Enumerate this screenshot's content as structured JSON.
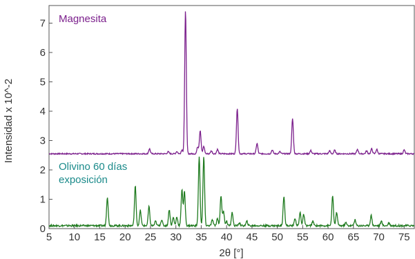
{
  "chart_data": {
    "type": "line",
    "xlabel": "2θ [°]",
    "ylabel": "Intensidad x 10^-2",
    "xlim": [
      5,
      77
    ],
    "ylim": [
      0,
      7.6
    ],
    "xticks": [
      5,
      10,
      15,
      20,
      25,
      30,
      35,
      40,
      45,
      50,
      55,
      60,
      65,
      70,
      75
    ],
    "yticks": [
      0,
      1,
      2,
      3,
      4,
      5,
      6,
      7
    ],
    "grid": false,
    "legend": "none",
    "series": [
      {
        "name": "Magnesita",
        "color": "#7b1f8c",
        "baseline": 2.55,
        "noise": 0.02,
        "peaks": [
          {
            "x": 24.8,
            "y": 2.72
          },
          {
            "x": 28.5,
            "y": 2.62
          },
          {
            "x": 30.2,
            "y": 2.63
          },
          {
            "x": 31.2,
            "y": 2.68
          },
          {
            "x": 31.9,
            "y": 7.45
          },
          {
            "x": 34.3,
            "y": 2.78
          },
          {
            "x": 34.8,
            "y": 3.35
          },
          {
            "x": 35.5,
            "y": 2.8
          },
          {
            "x": 37.0,
            "y": 2.65
          },
          {
            "x": 38.2,
            "y": 2.7
          },
          {
            "x": 42.1,
            "y": 4.1
          },
          {
            "x": 46.0,
            "y": 2.9
          },
          {
            "x": 49.0,
            "y": 2.68
          },
          {
            "x": 50.5,
            "y": 2.62
          },
          {
            "x": 53.0,
            "y": 3.75
          },
          {
            "x": 56.6,
            "y": 2.66
          },
          {
            "x": 60.3,
            "y": 2.65
          },
          {
            "x": 61.3,
            "y": 2.67
          },
          {
            "x": 65.8,
            "y": 2.7
          },
          {
            "x": 67.6,
            "y": 2.65
          },
          {
            "x": 68.6,
            "y": 2.72
          },
          {
            "x": 69.6,
            "y": 2.7
          },
          {
            "x": 75.0,
            "y": 2.68
          }
        ]
      },
      {
        "name": "Olivino 60 días exposición",
        "color": "#1e7a1e",
        "baseline": 0.1,
        "noise": 0.03,
        "peaks": [
          {
            "x": 16.5,
            "y": 1.08
          },
          {
            "x": 22.0,
            "y": 1.45
          },
          {
            "x": 23.0,
            "y": 0.62
          },
          {
            "x": 24.7,
            "y": 0.75
          },
          {
            "x": 26.0,
            "y": 0.25
          },
          {
            "x": 27.2,
            "y": 0.3
          },
          {
            "x": 28.7,
            "y": 0.65
          },
          {
            "x": 29.5,
            "y": 0.38
          },
          {
            "x": 30.2,
            "y": 0.4
          },
          {
            "x": 31.2,
            "y": 1.35
          },
          {
            "x": 31.7,
            "y": 1.25
          },
          {
            "x": 34.6,
            "y": 2.45
          },
          {
            "x": 35.5,
            "y": 2.45
          },
          {
            "x": 37.2,
            "y": 0.3
          },
          {
            "x": 38.2,
            "y": 0.35
          },
          {
            "x": 38.9,
            "y": 1.12
          },
          {
            "x": 39.4,
            "y": 0.58
          },
          {
            "x": 40.0,
            "y": 0.25
          },
          {
            "x": 41.1,
            "y": 0.55
          },
          {
            "x": 42.5,
            "y": 0.2
          },
          {
            "x": 44.0,
            "y": 0.25
          },
          {
            "x": 51.3,
            "y": 1.12
          },
          {
            "x": 53.5,
            "y": 0.35
          },
          {
            "x": 54.5,
            "y": 0.55
          },
          {
            "x": 55.2,
            "y": 0.48
          },
          {
            "x": 57.0,
            "y": 0.25
          },
          {
            "x": 60.9,
            "y": 1.1
          },
          {
            "x": 61.7,
            "y": 0.55
          },
          {
            "x": 63.5,
            "y": 0.2
          },
          {
            "x": 65.3,
            "y": 0.3
          },
          {
            "x": 68.5,
            "y": 0.45
          },
          {
            "x": 70.5,
            "y": 0.25
          },
          {
            "x": 72.0,
            "y": 0.2
          }
        ]
      }
    ]
  }
}
